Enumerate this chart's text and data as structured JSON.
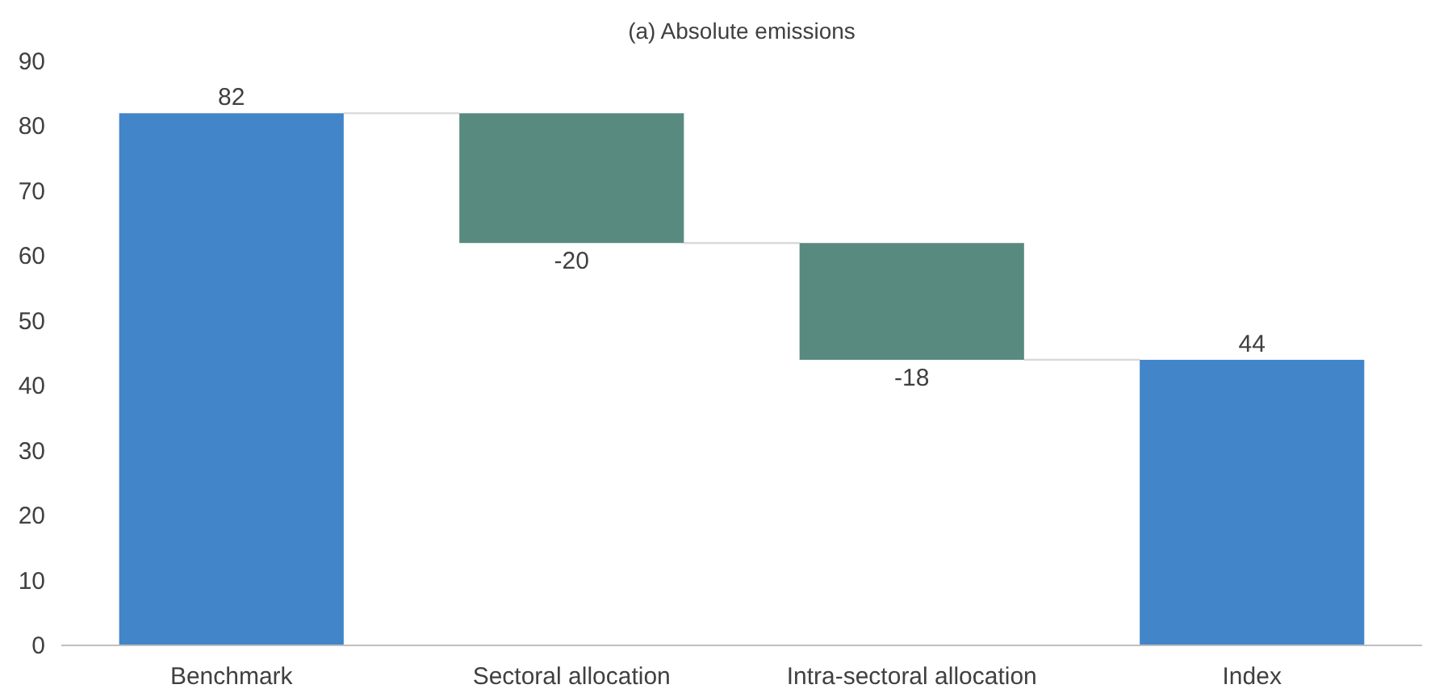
{
  "chart_data": {
    "type": "bar",
    "title": "(a)    Absolute emissions",
    "categories": [
      "Benchmark",
      "Sectoral allocation",
      "Intra-sectoral allocation",
      "Index"
    ],
    "values": [
      82,
      -20,
      -18,
      44
    ],
    "base": [
      0,
      82,
      62,
      0
    ],
    "colors": [
      "#4285c8",
      "#588a80",
      "#588a80",
      "#4285c8"
    ],
    "ylim": [
      0,
      90
    ],
    "yticks": [
      0,
      10,
      20,
      30,
      40,
      50,
      60,
      70,
      80,
      90
    ],
    "grid": false,
    "data_labels": true
  }
}
